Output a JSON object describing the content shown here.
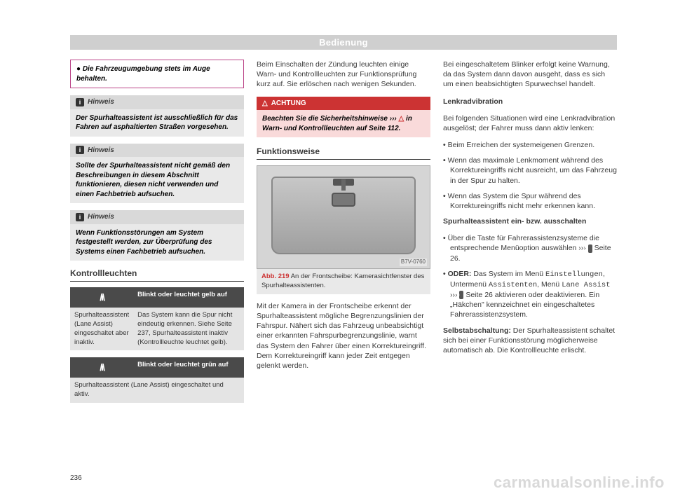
{
  "header": "Bedienung",
  "pagenum": "236",
  "watermark": "carmanualsonline.info",
  "col1": {
    "redbox": "● Die Fahrzeugumgebung stets im Auge behalten.",
    "note1_hdr": "Hinweis",
    "note1_body": "Der Spurhalteassistent ist ausschließlich für das Fahren auf asphaltierten Straßen vorgesehen.",
    "note2_hdr": "Hinweis",
    "note2_body": "Sollte der Spurhalteassistent nicht gemäß den Beschreibungen in diesem Abschnitt funktionieren, diesen nicht verwenden und einen Fachbetrieb aufsuchen.",
    "note3_hdr": "Hinweis",
    "note3_body": "Wenn Funktionsstörungen am System festgestellt werden, zur Überprüfung des Systems einen Fachbetrieb aufsuchen.",
    "sec_kontroll": "Kontrollleuchten",
    "tbl": {
      "r1_h": "Blinkt oder leuchtet gelb auf",
      "r1_l": "Spurhalteassistent (Lane Assist) eingeschaltet aber inaktiv.",
      "r1_r": "Das System kann die Spur nicht eindeutig erkennen. Siehe Seite 237, Spurhalteassistent inaktiv (Kontrollleuchte leuchtet gelb).",
      "r2_h": "Blinkt oder leuchtet grün auf",
      "r2_b": "Spurhalteassistent (Lane Assist) eingeschaltet und aktiv."
    }
  },
  "col2": {
    "p1": "Beim Einschalten der Zündung leuchten einige Warn- und Kontrollleuchten zur Funktionsprüfung kurz auf. Sie erlöschen nach wenigen Sekunden.",
    "ach_hdr": "ACHTUNG",
    "ach_body_a": "Beachten Sie die Sicherheitshinweise ››› ",
    "ach_body_b": " in Warn- und Kontrollleuchten auf Seite 112.",
    "sec_funk": "Funktionsweise",
    "fig_tag": "B7V-0760",
    "fig_abb": "Abb. 219",
    "fig_txt": "  An der Frontscheibe: Kamerasichtfenster des Spurhalteassistenten.",
    "p2": "Mit der Kamera in der Frontscheibe erkennt der Spurhalteassistent mögliche Begrenzungslinien der Fahrspur. Nähert sich das Fahrzeug unbeabsichtigt einer erkannten Fahrspurbegrenzungslinie, warnt das System den Fahrer über einen Korrektureingriff. Dem Korrektureingriff kann jeder Zeit entgegen gelenkt werden."
  },
  "col3": {
    "p1": "Bei eingeschaltetem Blinker erfolgt keine Warnung, da das System dann davon ausgeht, dass es sich um einen beabsichtigten Spurwechsel handelt.",
    "h_lenk": "Lenkradvibration",
    "p2": "Bei folgenden Situationen wird eine Lenkradvibration ausgelöst; der Fahrer muss dann aktiv lenken:",
    "b1": "Beim Erreichen der systemeigenen Grenzen.",
    "b2": "Wenn das maximale Lenkmoment während des Korrektureingriffs nicht ausreicht, um das Fahrzeug in der Spur zu halten.",
    "b3": "Wenn das System die Spur während des Korrektureingriffs nicht mehr erkennen kann.",
    "h_ein": "Spurhalteassistent ein- bzw. ausschalten",
    "b4a": "Über die Taste für Fahrerassistenzsysteme die entsprechende Menüoption auswählen ››› ",
    "b4b": " Seite 26.",
    "b5a": "ODER: ",
    "b5b": "Das System im Menü ",
    "b5c": "Einstellungen",
    "b5d": ", Untermenü ",
    "b5e": "Assistenten",
    "b5f": ", Menü ",
    "b5g": "Lane Assist",
    "b5h": " ››› ",
    "b5i": " Seite 26 aktivieren oder deaktivieren. Ein „Häkchen\" kennzeichnet ein eingeschaltetes Fahrerassistenzsystem.",
    "h_selbst": "Selbstabschaltung: ",
    "p_selbst": "Der Spurhalteassistent schaltet sich bei einer Funktionsstörung möglicherweise automatisch ab. Die Kontrollleuchte erlischt."
  }
}
